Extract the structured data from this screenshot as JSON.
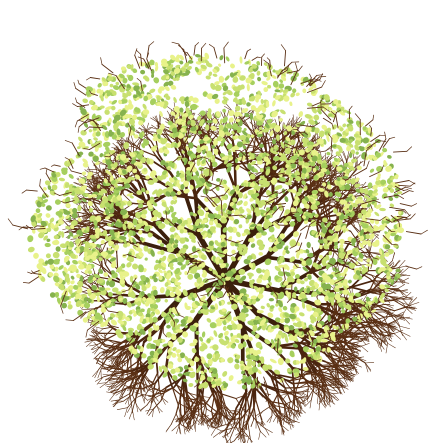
{
  "scene": {
    "subject": "tree-canopy-top-view",
    "background_color": "#ffffff"
  },
  "colors": {
    "trunk": "#3b1f0c",
    "branch": "#4a250f",
    "twig": "#5a3015",
    "leaf_light": "#e8f28a",
    "leaf_mid": "#c8e070",
    "leaf_green": "#a6cf5e",
    "leaf_dark": "#86b24e"
  }
}
